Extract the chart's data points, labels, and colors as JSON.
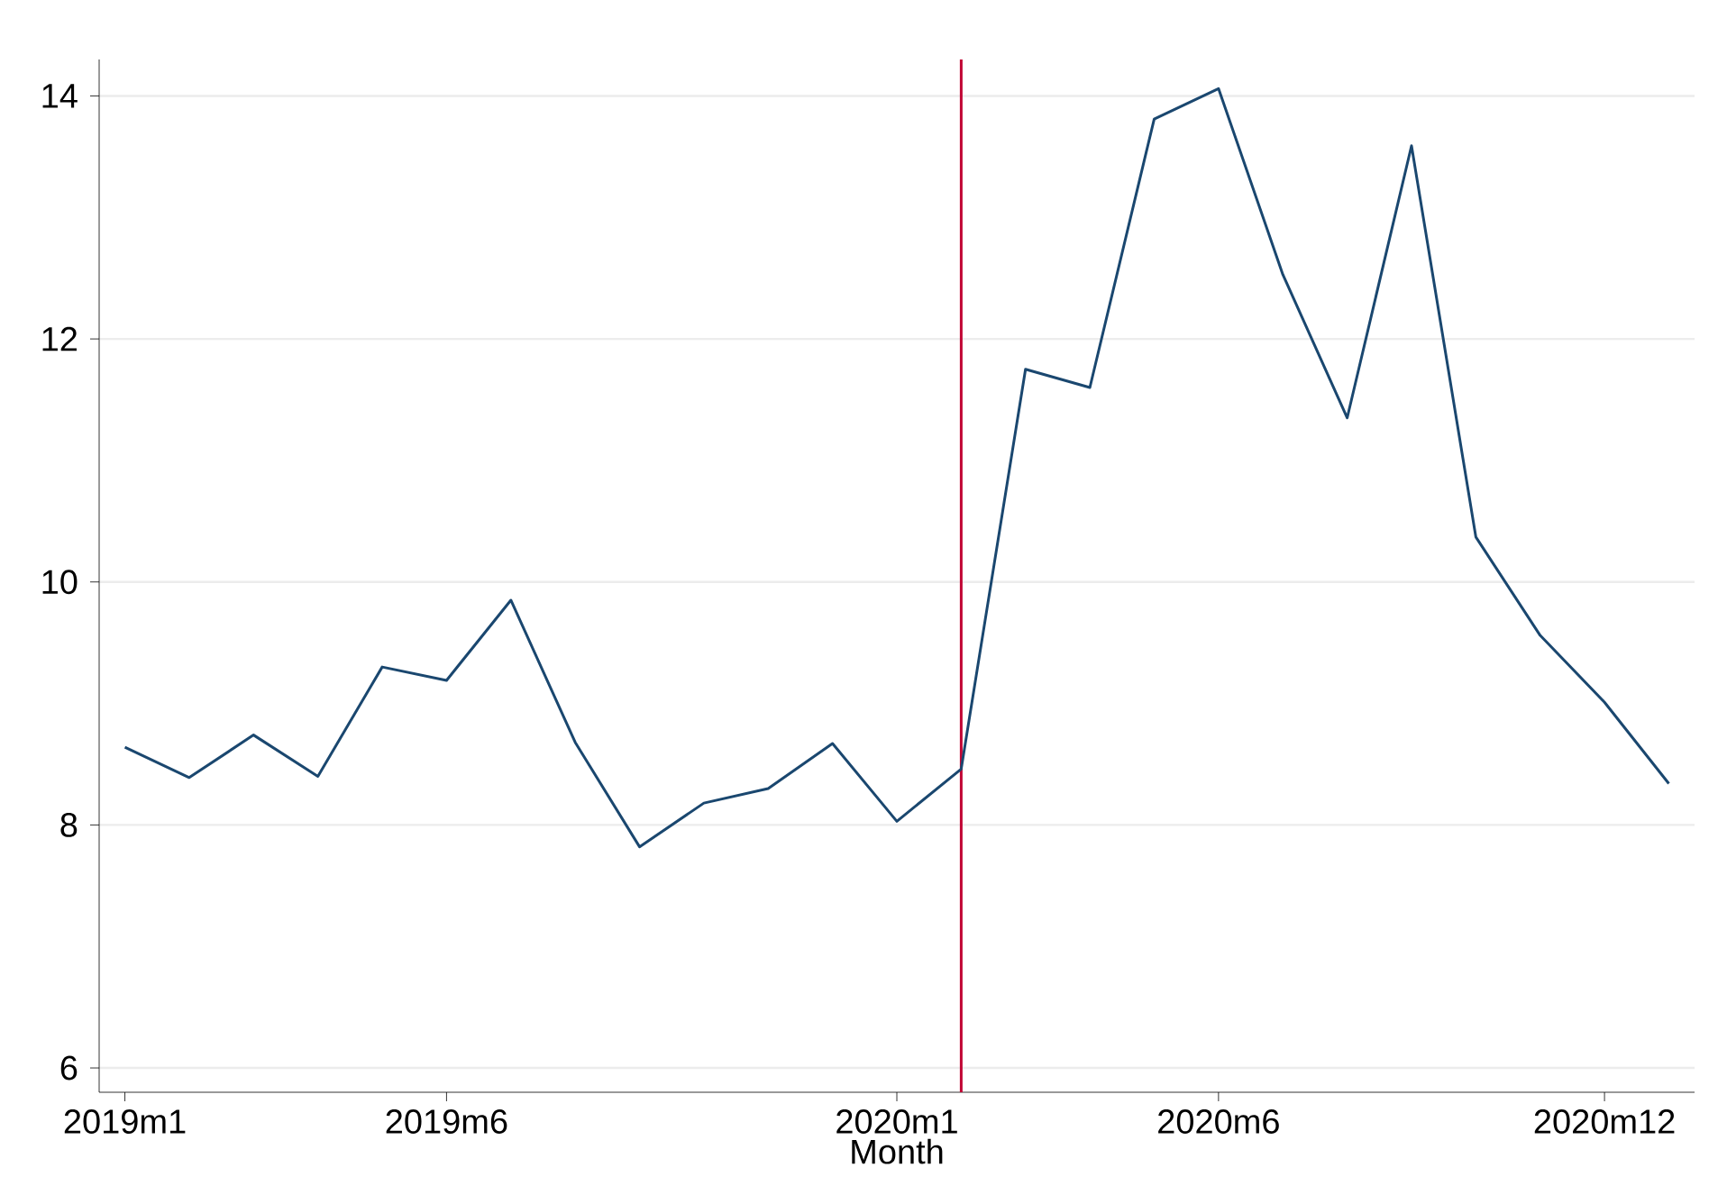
{
  "chart_data": {
    "type": "line",
    "xlabel": "Month",
    "categories": [
      "2019m1",
      null,
      null,
      null,
      null,
      "2019m6",
      null,
      null,
      null,
      null,
      null,
      null,
      "2020m1",
      null,
      null,
      null,
      null,
      "2020m6",
      null,
      null,
      null,
      null,
      null,
      "2020m12",
      null
    ],
    "series": [
      {
        "color": "#1a476f",
        "values": [
          8.64,
          8.39,
          8.74,
          8.4,
          9.3,
          9.19,
          9.85,
          8.68,
          7.82,
          8.18,
          8.3,
          8.67,
          8.03,
          8.46,
          11.75,
          11.6,
          13.81,
          14.06,
          12.53,
          11.35,
          13.59,
          10.37,
          9.56,
          9.01,
          8.34
        ]
      }
    ],
    "ylim": [
      5.8,
      14.3
    ],
    "yticks": [
      6,
      8,
      10,
      12,
      14
    ],
    "grid": "y",
    "marker": "none",
    "line_style": "solid"
  }
}
